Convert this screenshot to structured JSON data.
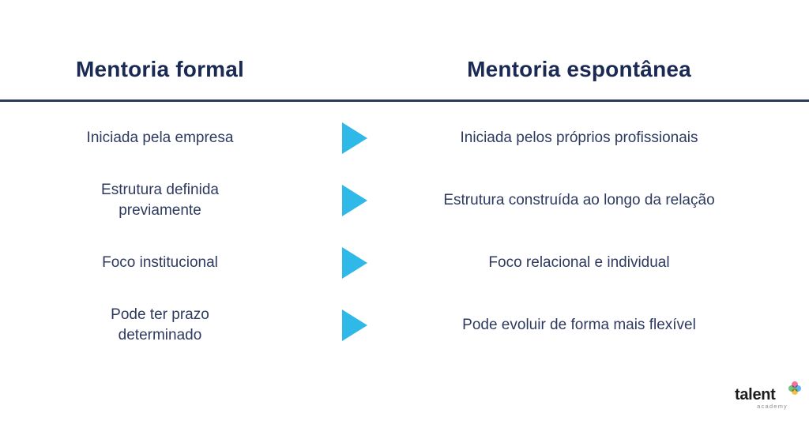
{
  "colors": {
    "heading_navy": "#1b2a55",
    "text_navy": "#2e3a5f",
    "divider_navy": "#2c3a5c",
    "arrow_cyan": "#2fb9e9",
    "logo_black": "#1c1c1e",
    "logo_gray": "#8e8e8e",
    "petal_pink": "#ef5a8b",
    "petal_green": "#5cb86e",
    "petal_blue": "#3fa9f5",
    "petal_orange": "#f7b32b"
  },
  "header": {
    "left": "Mentoria formal",
    "right": "Mentoria espontânea"
  },
  "rows": [
    {
      "formal": "Iniciada pela empresa",
      "espontanea": "Iniciada pelos próprios profissionais"
    },
    {
      "formal": "Estrutura definida\npreviamente",
      "espontanea": "Estrutura construída ao longo da relação"
    },
    {
      "formal": "Foco institucional",
      "espontanea": "Foco relacional e individual"
    },
    {
      "formal": "Pode ter prazo\ndeterminado",
      "espontanea": "Pode evoluir de forma mais flexível"
    }
  ],
  "icons": {
    "row_arrow": "play-triangle-right-icon",
    "logo_mark": "flower-asterisk-icon"
  },
  "logo": {
    "wordmark": "talent",
    "subtitle": "academy"
  }
}
